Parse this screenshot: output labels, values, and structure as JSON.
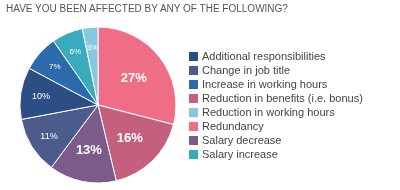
{
  "chart_data": {
    "type": "pie",
    "title": "HAVE YOU BEEN AFFECTED BY ANY OF THE FOLLOWING?",
    "categories": [
      "Redundancy",
      "Reduction in benefits (i.e. bonus)",
      "Salary decrease",
      "Change in job title",
      "Additional responsibilities",
      "Increase in working hours",
      "Salary increase",
      "Reduction in working hours"
    ],
    "values": [
      27,
      16,
      13,
      11,
      10,
      7,
      6,
      3
    ],
    "value_labels": [
      "27%",
      "16%",
      "13%",
      "11%",
      "10%",
      "7%",
      "6%",
      "3%"
    ],
    "data_labels": true,
    "colors": [
      "#ef6e85",
      "#c4607e",
      "#7a5b8a",
      "#4a5b8c",
      "#2d4d85",
      "#2a6aad",
      "#3aabbd",
      "#85c8df"
    ],
    "legend": "right"
  }
}
